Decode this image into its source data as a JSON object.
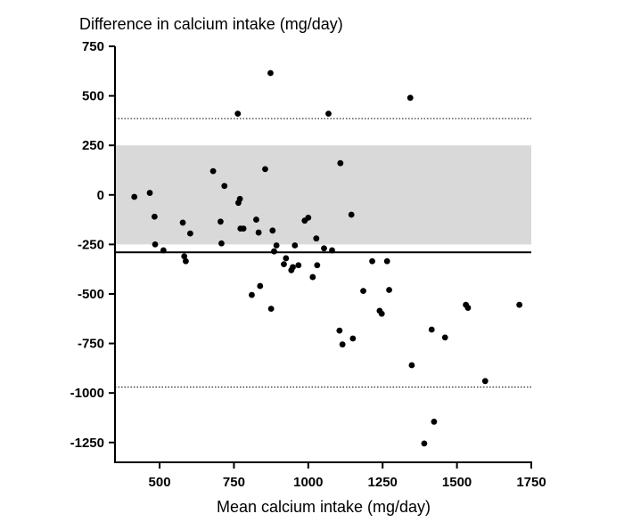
{
  "chart_data": {
    "type": "scatter",
    "title": "",
    "ylabel": "Difference in calcium intake (mg/day)",
    "xlabel": "Mean calcium intake (mg/day)",
    "xlim": [
      350,
      1750
    ],
    "ylim": [
      -1350,
      750
    ],
    "x_ticks": [
      500,
      750,
      1000,
      1250,
      1500,
      1750
    ],
    "y_ticks": [
      750,
      500,
      250,
      0,
      -250,
      -500,
      -750,
      -1000,
      -1250
    ],
    "x_tick_labels": [
      "500",
      "750",
      "1000",
      "1250",
      "1500",
      "1750"
    ],
    "y_tick_labels": [
      "750",
      "500",
      "250",
      "0",
      "-250",
      "-500",
      "-750",
      "-1000",
      "-1250"
    ],
    "grid": false,
    "equivalence_band": [
      -250,
      250
    ],
    "mean_difference": -290,
    "limits_of_agreement": [
      -970,
      385
    ],
    "colors": {
      "points": "#000000",
      "band": "#d9d9d9",
      "lines": "#000000"
    },
    "points": [
      {
        "x": 415,
        "y": -10
      },
      {
        "x": 467,
        "y": 10
      },
      {
        "x": 483,
        "y": -110
      },
      {
        "x": 485,
        "y": -250
      },
      {
        "x": 513,
        "y": -280
      },
      {
        "x": 578,
        "y": -140
      },
      {
        "x": 583,
        "y": -310
      },
      {
        "x": 588,
        "y": -335
      },
      {
        "x": 603,
        "y": -195
      },
      {
        "x": 680,
        "y": 120
      },
      {
        "x": 705,
        "y": -135
      },
      {
        "x": 708,
        "y": -245
      },
      {
        "x": 718,
        "y": 45
      },
      {
        "x": 763,
        "y": 410
      },
      {
        "x": 765,
        "y": -40
      },
      {
        "x": 770,
        "y": -20
      },
      {
        "x": 772,
        "y": -170
      },
      {
        "x": 782,
        "y": -170
      },
      {
        "x": 810,
        "y": -505
      },
      {
        "x": 825,
        "y": -125
      },
      {
        "x": 833,
        "y": -190
      },
      {
        "x": 838,
        "y": -460
      },
      {
        "x": 855,
        "y": 130
      },
      {
        "x": 873,
        "y": 615
      },
      {
        "x": 875,
        "y": -575
      },
      {
        "x": 880,
        "y": -180
      },
      {
        "x": 885,
        "y": -285
      },
      {
        "x": 893,
        "y": -255
      },
      {
        "x": 918,
        "y": -350
      },
      {
        "x": 925,
        "y": -320
      },
      {
        "x": 943,
        "y": -380
      },
      {
        "x": 948,
        "y": -365
      },
      {
        "x": 955,
        "y": -255
      },
      {
        "x": 967,
        "y": -355
      },
      {
        "x": 988,
        "y": -130
      },
      {
        "x": 1000,
        "y": -115
      },
      {
        "x": 1015,
        "y": -415
      },
      {
        "x": 1027,
        "y": -220
      },
      {
        "x": 1030,
        "y": -355
      },
      {
        "x": 1053,
        "y": -270
      },
      {
        "x": 1068,
        "y": 410
      },
      {
        "x": 1080,
        "y": -280
      },
      {
        "x": 1105,
        "y": -685
      },
      {
        "x": 1108,
        "y": 160
      },
      {
        "x": 1115,
        "y": -755
      },
      {
        "x": 1145,
        "y": -100
      },
      {
        "x": 1150,
        "y": -725
      },
      {
        "x": 1185,
        "y": -485
      },
      {
        "x": 1215,
        "y": -335
      },
      {
        "x": 1240,
        "y": -585
      },
      {
        "x": 1247,
        "y": -600
      },
      {
        "x": 1265,
        "y": -335
      },
      {
        "x": 1272,
        "y": -480
      },
      {
        "x": 1343,
        "y": 490
      },
      {
        "x": 1348,
        "y": -860
      },
      {
        "x": 1390,
        "y": -1255
      },
      {
        "x": 1415,
        "y": -680
      },
      {
        "x": 1423,
        "y": -1145
      },
      {
        "x": 1460,
        "y": -720
      },
      {
        "x": 1530,
        "y": -555
      },
      {
        "x": 1537,
        "y": -570
      },
      {
        "x": 1595,
        "y": -940
      },
      {
        "x": 1710,
        "y": -555
      }
    ]
  }
}
